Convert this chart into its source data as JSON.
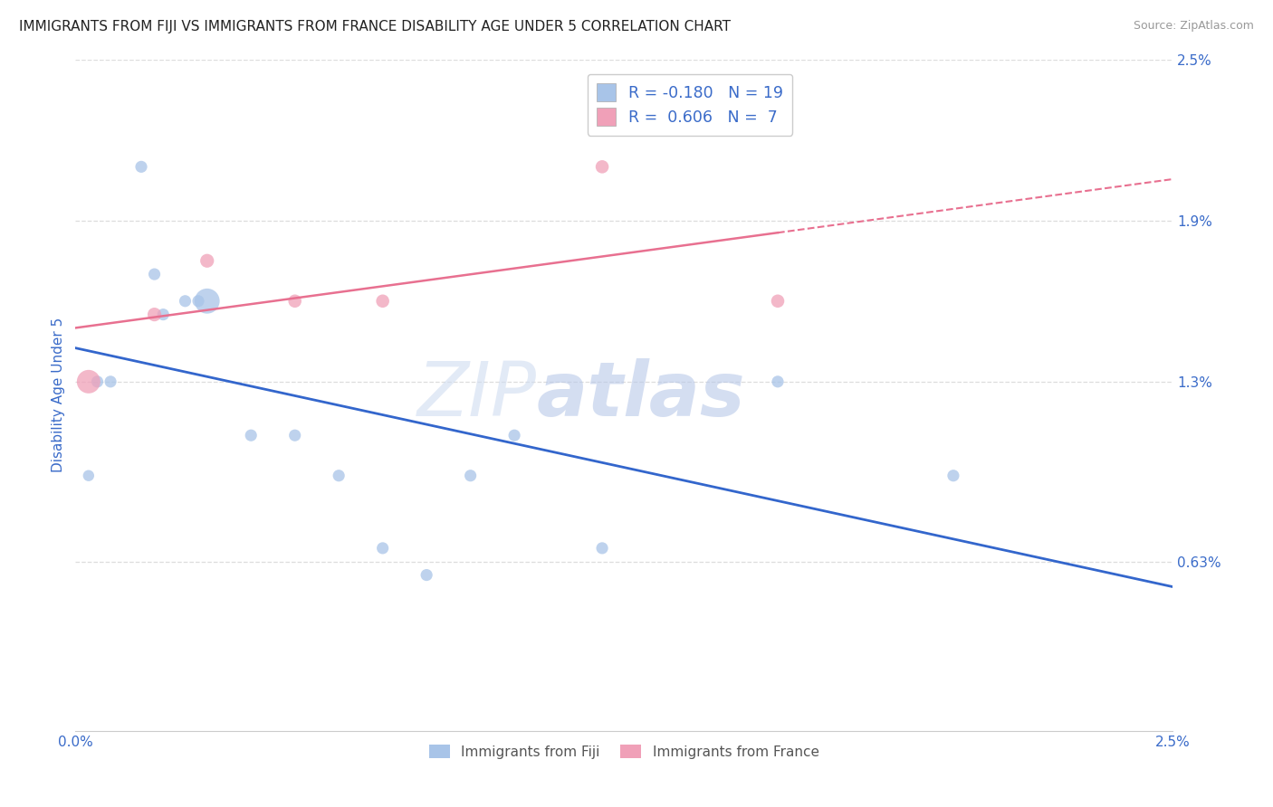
{
  "title": "IMMIGRANTS FROM FIJI VS IMMIGRANTS FROM FRANCE DISABILITY AGE UNDER 5 CORRELATION CHART",
  "source": "Source: ZipAtlas.com",
  "ylabel": "Disability Age Under 5",
  "xlim": [
    0.0,
    0.025
  ],
  "ylim": [
    0.0,
    0.025
  ],
  "ytick_labels_right": [
    "2.5%",
    "1.9%",
    "1.3%",
    "0.63%"
  ],
  "ytick_vals_right": [
    0.025,
    0.019,
    0.013,
    0.0063
  ],
  "fiji_color": "#a8c4e8",
  "france_color": "#f0a0b8",
  "fiji_line_color": "#3366cc",
  "france_line_color": "#e87090",
  "fiji_R": -0.18,
  "fiji_N": 19,
  "france_R": 0.606,
  "france_N": 7,
  "fiji_points": [
    [
      0.0003,
      0.0095
    ],
    [
      0.0005,
      0.013
    ],
    [
      0.0008,
      0.013
    ],
    [
      0.0015,
      0.021
    ],
    [
      0.0018,
      0.017
    ],
    [
      0.002,
      0.0155
    ],
    [
      0.0025,
      0.016
    ],
    [
      0.0028,
      0.016
    ],
    [
      0.003,
      0.016
    ],
    [
      0.004,
      0.011
    ],
    [
      0.005,
      0.011
    ],
    [
      0.006,
      0.0095
    ],
    [
      0.007,
      0.0068
    ],
    [
      0.008,
      0.0058
    ],
    [
      0.009,
      0.0095
    ],
    [
      0.01,
      0.011
    ],
    [
      0.012,
      0.0068
    ],
    [
      0.016,
      0.013
    ],
    [
      0.02,
      0.0095
    ]
  ],
  "france_points": [
    [
      0.0003,
      0.013
    ],
    [
      0.0018,
      0.0155
    ],
    [
      0.003,
      0.0175
    ],
    [
      0.005,
      0.016
    ],
    [
      0.007,
      0.016
    ],
    [
      0.012,
      0.021
    ],
    [
      0.016,
      0.016
    ]
  ],
  "fiji_point_sizes": [
    80,
    90,
    90,
    90,
    90,
    90,
    90,
    90,
    400,
    90,
    90,
    90,
    90,
    90,
    90,
    90,
    90,
    90,
    90
  ],
  "france_point_sizes": [
    350,
    120,
    120,
    110,
    110,
    110,
    110
  ],
  "background_color": "#ffffff",
  "grid_color": "#dddddd",
  "watermark_left": "ZIP",
  "watermark_right": "atlas",
  "legend_fiji_label": "Immigrants from Fiji",
  "legend_france_label": "Immigrants from France"
}
